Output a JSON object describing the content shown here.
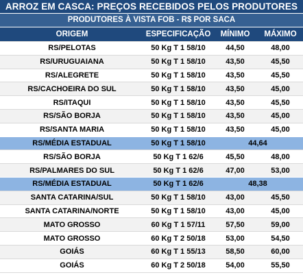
{
  "title": "ARROZ EM CASCA: PREÇOS RECEBIDOS PELOS PRODUTORES",
  "subtitle": "PRODUTORES À VISTA FOB - R$ POR SACA",
  "columns": [
    "ORIGEM",
    "ESPECIFICAÇÃO",
    "MÍNIMO",
    "MÁXIMO"
  ],
  "rows": [
    {
      "origem": "RS/PELOTAS",
      "spec": "50 Kg T 1 58/10",
      "min": "44,50",
      "max": "48,00"
    },
    {
      "origem": "RS/URUGUAIANA",
      "spec": "50 Kg T 1 58/10",
      "min": "43,50",
      "max": "45,50"
    },
    {
      "origem": "RS/ALEGRETE",
      "spec": "50 Kg T 1 58/10",
      "min": "43,50",
      "max": "45,50"
    },
    {
      "origem": "RS/CACHOEIRA DO SUL",
      "spec": "50 Kg T 1 58/10",
      "min": "43,50",
      "max": "45,00"
    },
    {
      "origem": "RS/ITAQUI",
      "spec": "50 Kg T 1 58/10",
      "min": "43,50",
      "max": "45,50"
    },
    {
      "origem": "RS/SÃO BORJA",
      "spec": "50 Kg T 1 58/10",
      "min": "43,50",
      "max": "45,00"
    },
    {
      "origem": "RS/SANTA MARIA",
      "spec": "50 Kg T 1 58/10",
      "min": "43,50",
      "max": "45,00"
    },
    {
      "origem": "RS/MÉDIA ESTADUAL",
      "spec": "50 Kg T 1 58/10",
      "avg": "44,64",
      "is_avg": true
    },
    {
      "origem": "RS/SÃO BORJA",
      "spec": "50 Kg T 1 62/6",
      "min": "45,50",
      "max": "48,00"
    },
    {
      "origem": "RS/PALMARES DO SUL",
      "spec": "50 Kg T 1 62/6",
      "min": "47,00",
      "max": "53,00"
    },
    {
      "origem": "RS/MÉDIA ESTADUAL",
      "spec": "50 Kg T 1 62/6",
      "avg": "48,38",
      "is_avg": true
    },
    {
      "origem": "SANTA CATARINA/SUL",
      "spec": "50 Kg T 1 58/10",
      "min": "43,00",
      "max": "45,50"
    },
    {
      "origem": "SANTA CATARINA/NORTE",
      "spec": "50 Kg T 1 58/10",
      "min": "43,00",
      "max": "45,00"
    },
    {
      "origem": "MATO GROSSO",
      "spec": "60 Kg T 1 57/11",
      "min": "57,50",
      "max": "59,00"
    },
    {
      "origem": "MATO GROSSO",
      "spec": "60 Kg T 2 50/18",
      "min": "53,00",
      "max": "54,50"
    },
    {
      "origem": "GOIÁS",
      "spec": "60 Kg T 1 55/13",
      "min": "58,50",
      "max": "60,00"
    },
    {
      "origem": "GOIÁS",
      "spec": "60 Kg T 2 50/18",
      "min": "54,00",
      "max": "55,50"
    }
  ],
  "colors": {
    "title_bg": "#1f497d",
    "subtitle_bg": "#366092",
    "avg_row_bg": "#8db4e2",
    "alt_row_bg": "#f2f2f2"
  }
}
